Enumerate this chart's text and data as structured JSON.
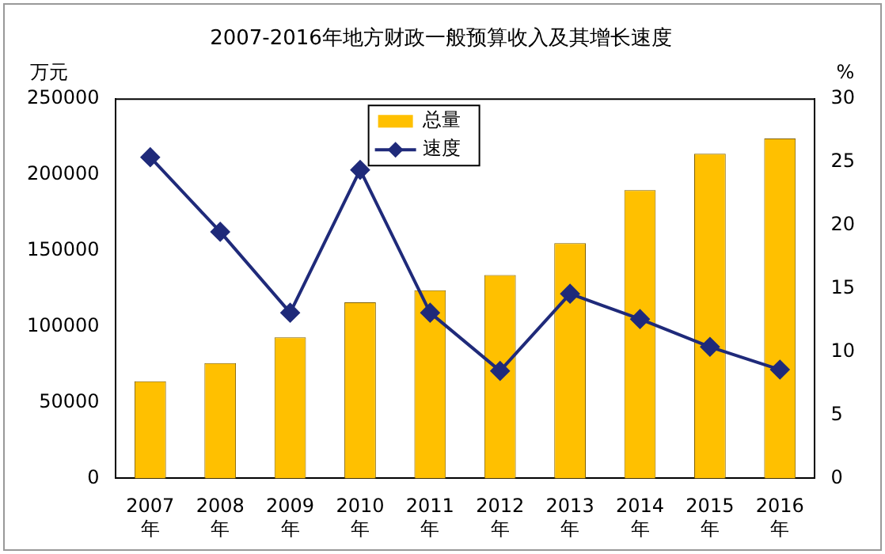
{
  "chart_data": {
    "type": "bar",
    "title": "2007-2016年地方财政一般预算收入及其增长速度",
    "categories": [
      "2007\n年",
      "2008\n年",
      "2009\n年",
      "2010\n年",
      "2011\n年",
      "2012\n年",
      "2013\n年",
      "2014\n年",
      "2015\n年",
      "2016\n年"
    ],
    "series": [
      {
        "name": "总量",
        "color": "#ffc000",
        "values": [
          64000,
          76000,
          93000,
          116000,
          124000,
          134000,
          155000,
          190000,
          214000,
          224000
        ]
      },
      {
        "name": "速度",
        "type": "line",
        "axis": "y2",
        "color": "#1f2a7a",
        "marker": "diamond",
        "values": [
          25.4,
          19.5,
          13.1,
          24.4,
          13.1,
          8.5,
          14.6,
          12.6,
          10.4,
          8.6
        ]
      }
    ],
    "ylabel": "万元",
    "y2label": "%",
    "ylim": [
      0,
      250000
    ],
    "yticks": [
      0,
      50000,
      100000,
      150000,
      200000,
      250000
    ],
    "y2lim": [
      0,
      30
    ],
    "y2ticks": [
      0,
      5,
      10,
      15,
      20,
      25,
      30
    ],
    "grid": false,
    "legend": "top"
  }
}
